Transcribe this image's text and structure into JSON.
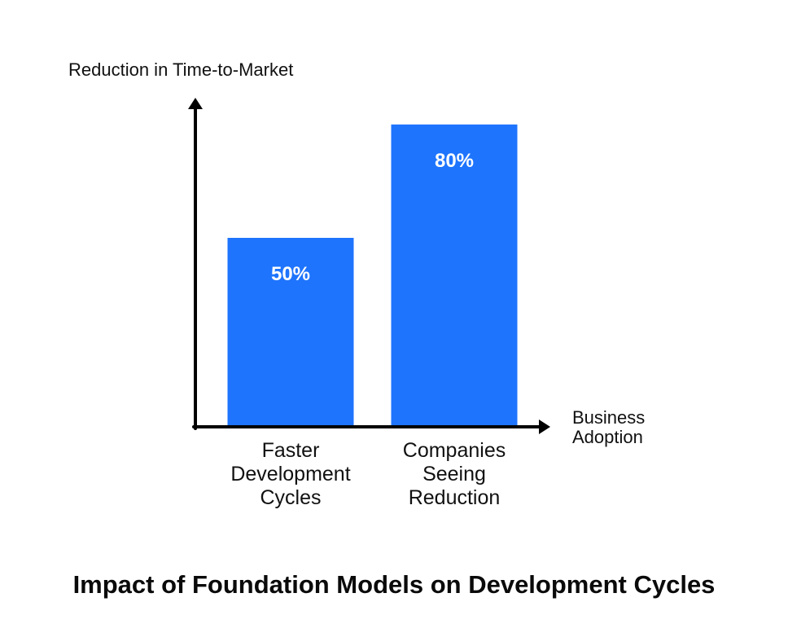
{
  "chart_data": {
    "type": "bar",
    "title": "Impact of Foundation Models on Development Cycles",
    "ylabel": "Reduction in Time-to-Market",
    "xlabel": "Business Adoption",
    "categories": [
      "Faster Development Cycles",
      "Companies Seeing Reduction"
    ],
    "values": [
      50,
      80
    ],
    "value_labels": [
      "50%",
      "80%"
    ],
    "unit": "%",
    "ylim": [
      0,
      100
    ],
    "grid": false,
    "bar_color": "#1e74fd",
    "axis_color": "#000000"
  }
}
